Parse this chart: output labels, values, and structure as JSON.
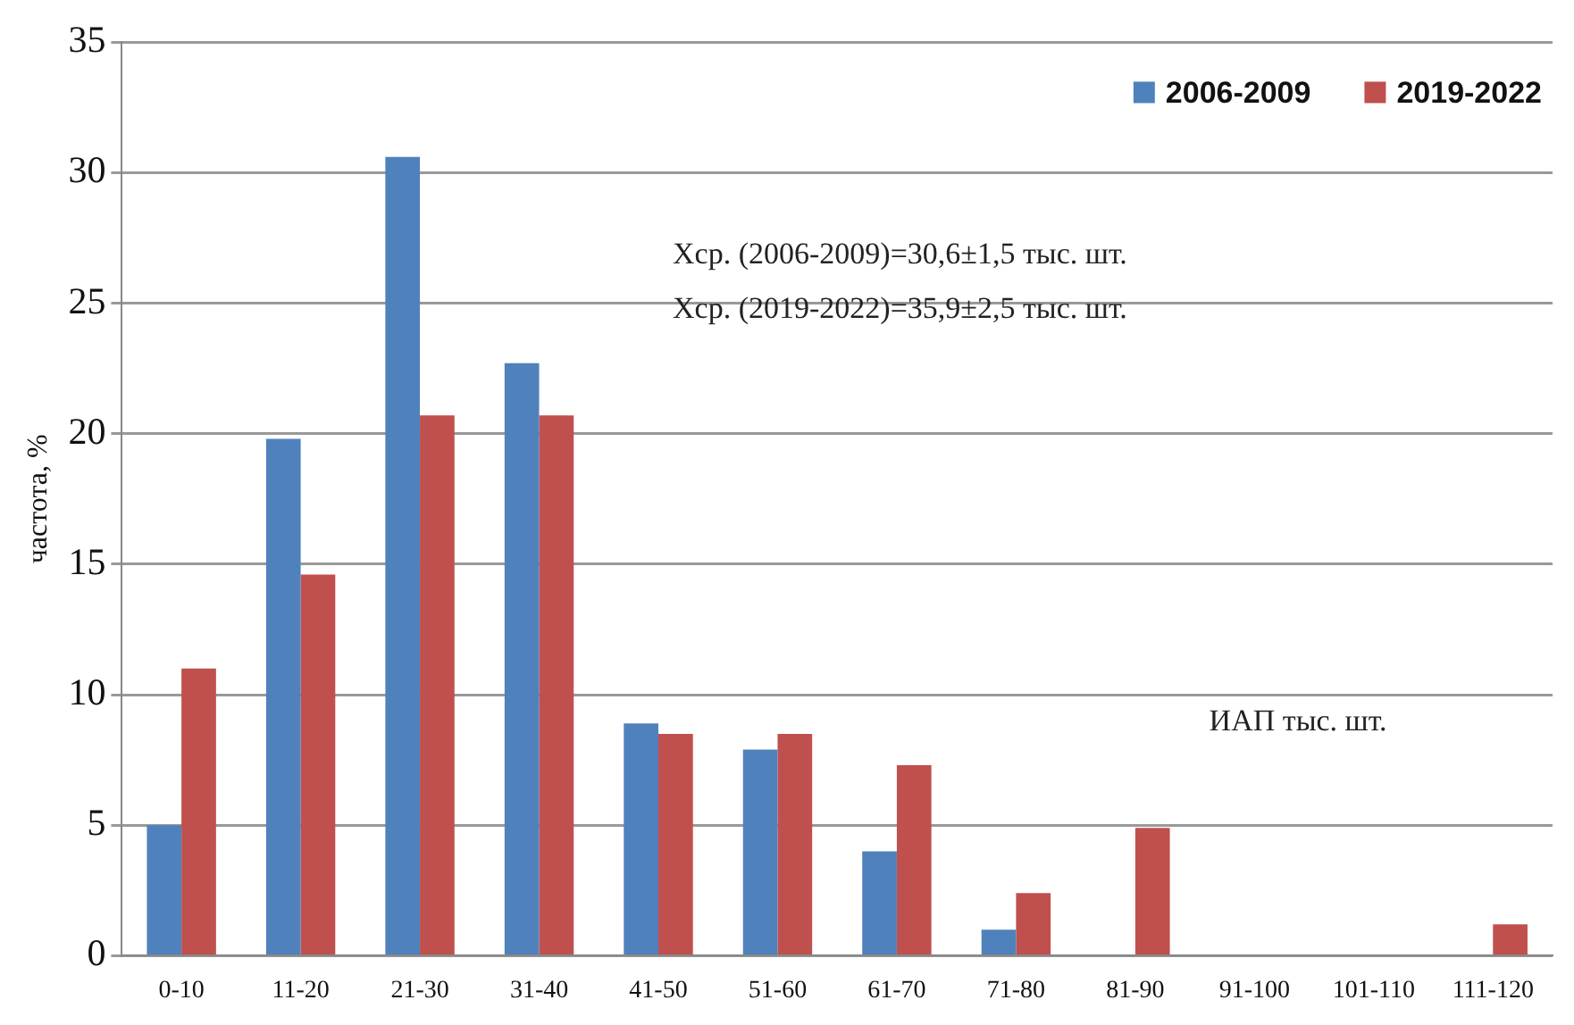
{
  "chart_data": {
    "type": "bar",
    "ylabel": "частота, %",
    "categories": [
      "0-10",
      "11-20",
      "21-30",
      "31-40",
      "41-50",
      "51-60",
      "61-70",
      "71-80",
      "81-90",
      "91-100",
      "101-110",
      "111-120"
    ],
    "series": [
      {
        "name": "2006-2009",
        "color": "#4f81bd",
        "values": [
          5.0,
          19.8,
          30.6,
          22.7,
          8.9,
          7.9,
          4.0,
          1.0,
          0,
          0,
          0,
          0
        ]
      },
      {
        "name": "2019-2022",
        "color": "#c0504d",
        "values": [
          11.0,
          14.6,
          20.7,
          20.7,
          8.5,
          8.5,
          7.3,
          2.4,
          4.9,
          0,
          0,
          1.2
        ]
      }
    ],
    "ylim": [
      0,
      35
    ],
    "yticks": [
      0,
      5,
      10,
      15,
      20,
      25,
      30,
      35
    ],
    "grid": "y",
    "legend": "top right",
    "annotations": [
      "Xср. (2006-2009)=30,6±1,5 тыс. шт.",
      "Xср. (2019-2022)=35,9±2,5 тыс. шт.",
      "ИАП тыс. шт."
    ]
  }
}
